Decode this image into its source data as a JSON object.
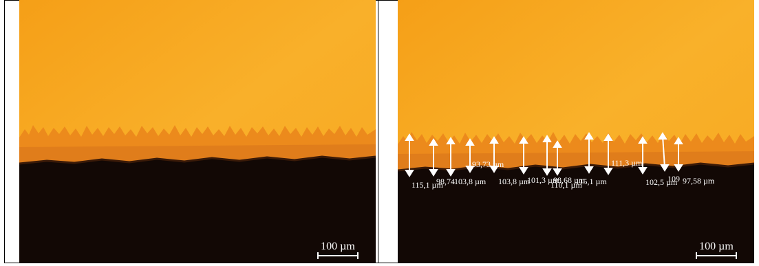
{
  "left_panel": {
    "scale_label": "100 µm"
  },
  "right_panel": {
    "scale_label": "100 µm",
    "measurements": [
      "115,1 µm",
      "98,74",
      "103,8 µm",
      "93,73 µm",
      "103,8 µm",
      "101,3 µm",
      "98,68 µm",
      "110,1 µm",
      "115,1 µm",
      "111,3 µm",
      "102,5 µm",
      "109",
      "97,58 µm"
    ]
  },
  "colors": {
    "coating": "#f7a41c",
    "coating_light": "#f9b12a",
    "interface": "#e8861a",
    "substrate": "#120805",
    "annotation": "#ffffff"
  }
}
